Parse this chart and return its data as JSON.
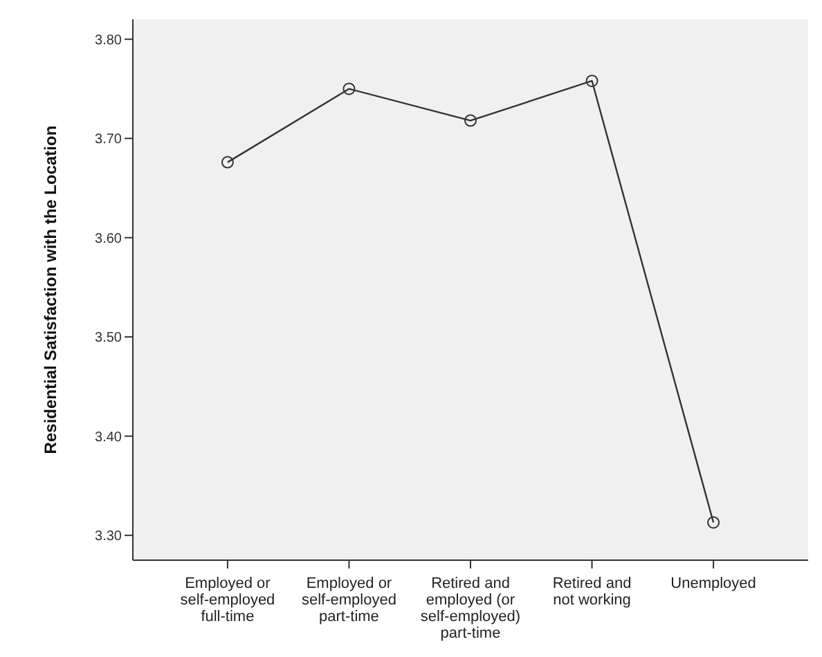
{
  "chart_data": {
    "type": "line",
    "ylabel": "Residential Satisfaction with the Location",
    "categories": [
      "Employed or self-employed full-time",
      "Employed or self-employed part-time",
      "Retired and employed (or self-employed) part-time",
      "Retired and not working",
      "Unemployed"
    ],
    "series": [
      {
        "color": "#333333",
        "values": [
          3.676,
          3.75,
          3.718,
          3.758,
          3.313
        ]
      }
    ],
    "ylim": [
      3.275,
      3.82
    ],
    "yticks": [
      {
        "value": 3.3,
        "label": "3.30"
      },
      {
        "value": 3.4,
        "label": "3.40"
      },
      {
        "value": 3.5,
        "label": "3.50"
      },
      {
        "value": 3.6,
        "label": "3.60"
      },
      {
        "value": 3.7,
        "label": "3.70"
      },
      {
        "value": 3.8,
        "label": "3.80"
      }
    ],
    "grid": false,
    "legend": false,
    "marker": "circle",
    "line_style": "solid"
  }
}
